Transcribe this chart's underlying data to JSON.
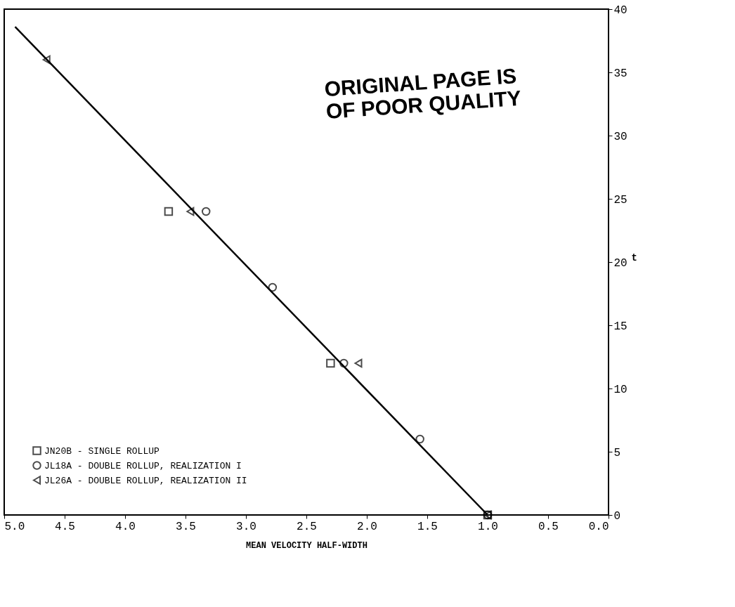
{
  "chart_data": {
    "type": "scatter",
    "xlabel": "MEAN VELOCITY HALF-WIDTH",
    "ylabel": "t",
    "xlim": [
      5.0,
      0.0
    ],
    "xticks": [
      {
        "value": 5.0,
        "label": "5.0"
      },
      {
        "value": 4.5,
        "label": "4.5"
      },
      {
        "value": 4.0,
        "label": "4.0"
      },
      {
        "value": 3.5,
        "label": "3.5"
      },
      {
        "value": 3.0,
        "label": "3.0"
      },
      {
        "value": 2.5,
        "label": "2.5"
      },
      {
        "value": 2.0,
        "label": "2.0"
      },
      {
        "value": 1.5,
        "label": "1.5"
      },
      {
        "value": 1.0,
        "label": "1.0"
      },
      {
        "value": 0.5,
        "label": "0.5"
      },
      {
        "value": 0.0,
        "label": "0.0"
      }
    ],
    "ylim": [
      0,
      40
    ],
    "yticks": [
      0,
      5,
      10,
      15,
      20,
      25,
      30,
      35,
      40
    ],
    "grid": false,
    "legend": "bottom left",
    "series": [
      {
        "type": "line",
        "color": "#000000",
        "x": [
          1.0,
          4.91
        ],
        "values": [
          0,
          38.6
        ]
      },
      {
        "name": "JN20B - SINGLE ROLLUP",
        "marker": "square",
        "color": "#000000",
        "x": [
          1.0,
          2.3,
          3.64
        ],
        "values": [
          0,
          12,
          24
        ]
      },
      {
        "name": "JL18A - DOUBLE ROLLUP, REALIZATION I",
        "marker": "circle",
        "color": "#000000",
        "x": [
          1.0,
          1.56,
          2.19,
          2.78,
          3.33
        ],
        "values": [
          0,
          6,
          12,
          18,
          24
        ]
      },
      {
        "name": "JL26A - DOUBLE ROLLUP, REALIZATION II",
        "marker": "triangle",
        "color": "#000000",
        "x": [
          1.0,
          2.07,
          3.46,
          4.65
        ],
        "values": [
          0,
          12,
          24,
          36
        ]
      }
    ],
    "annotations": [
      "ORIGINAL PAGE IS\nOF POOR QUALITY"
    ]
  }
}
